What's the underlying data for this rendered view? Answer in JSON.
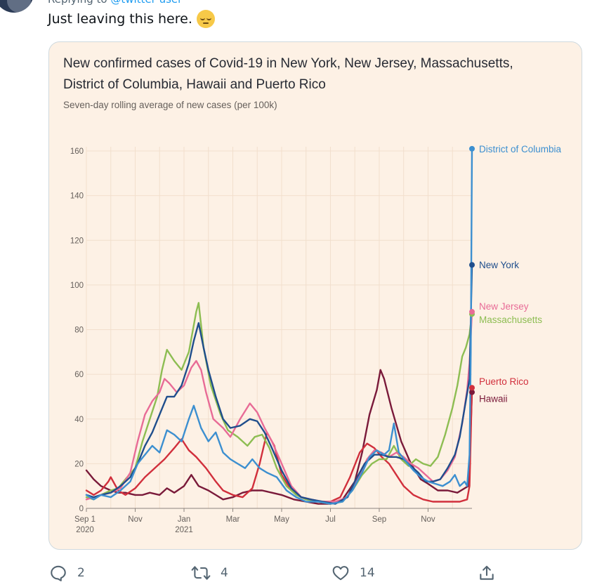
{
  "tweet": {
    "replying_prefix": "Replying to",
    "replying_handle": "@twitter user",
    "text": "Just leaving this here."
  },
  "chart_data": {
    "type": "line",
    "title": "New confirmed cases of Covid-19 in New York, New Jersey, Massachusetts, District of Columbia, Hawaii and Puerto Rico",
    "subtitle": "Seven-day rolling average of new cases (per 100k)",
    "xlabel": "",
    "ylabel": "",
    "ylim": [
      0,
      160
    ],
    "yticks": [
      0,
      20,
      40,
      60,
      80,
      100,
      120,
      140,
      160
    ],
    "xticks": [
      {
        "x": 0,
        "label": "Sep 1",
        "sub": "2020"
      },
      {
        "x": 2,
        "label": "Nov",
        "sub": ""
      },
      {
        "x": 4,
        "label": "Jan",
        "sub": "2021"
      },
      {
        "x": 6,
        "label": "Mar",
        "sub": ""
      },
      {
        "x": 8,
        "label": "May",
        "sub": ""
      },
      {
        "x": 10,
        "label": "Jul",
        "sub": ""
      },
      {
        "x": 12,
        "label": "Sep",
        "sub": ""
      },
      {
        "x": 14,
        "label": "Nov",
        "sub": ""
      }
    ],
    "xlim": [
      0,
      15.8
    ],
    "grid": true,
    "legend": "right-end labels",
    "series": [
      {
        "name": "Hawaii",
        "color": "#7a1a3a",
        "label_offset": 9,
        "points": [
          [
            0,
            17
          ],
          [
            0.3,
            13
          ],
          [
            0.6,
            10
          ],
          [
            1.0,
            8
          ],
          [
            1.3,
            7
          ],
          [
            1.6,
            7
          ],
          [
            2.0,
            6
          ],
          [
            2.3,
            6
          ],
          [
            2.6,
            7
          ],
          [
            3.0,
            6
          ],
          [
            3.3,
            9
          ],
          [
            3.6,
            7
          ],
          [
            4.0,
            10
          ],
          [
            4.3,
            15
          ],
          [
            4.6,
            10
          ],
          [
            5.0,
            8
          ],
          [
            5.3,
            6
          ],
          [
            5.6,
            4
          ],
          [
            6.0,
            5
          ],
          [
            6.4,
            7
          ],
          [
            6.8,
            8
          ],
          [
            7.2,
            8
          ],
          [
            7.6,
            7
          ],
          [
            8.0,
            6
          ],
          [
            8.5,
            4
          ],
          [
            9.0,
            3
          ],
          [
            9.5,
            2
          ],
          [
            10.0,
            2
          ],
          [
            10.5,
            4
          ],
          [
            11.0,
            12
          ],
          [
            11.3,
            25
          ],
          [
            11.6,
            42
          ],
          [
            11.9,
            53
          ],
          [
            12.05,
            62
          ],
          [
            12.2,
            58
          ],
          [
            12.5,
            45
          ],
          [
            12.9,
            30
          ],
          [
            13.3,
            20
          ],
          [
            13.7,
            13
          ],
          [
            14.0,
            11
          ],
          [
            14.4,
            8
          ],
          [
            14.8,
            8
          ],
          [
            15.2,
            7
          ],
          [
            15.5,
            9
          ],
          [
            15.65,
            10
          ],
          [
            15.7,
            20
          ],
          [
            15.8,
            52
          ]
        ]
      },
      {
        "name": "Puerto Rico",
        "color": "#d12f3c",
        "label_offset": -9,
        "points": [
          [
            0,
            8
          ],
          [
            0.3,
            6
          ],
          [
            0.6,
            8
          ],
          [
            0.9,
            12
          ],
          [
            1.0,
            14
          ],
          [
            1.3,
            8
          ],
          [
            1.6,
            6
          ],
          [
            2.0,
            9
          ],
          [
            2.4,
            14
          ],
          [
            2.8,
            18
          ],
          [
            3.2,
            22
          ],
          [
            3.6,
            27
          ],
          [
            3.9,
            31
          ],
          [
            4.2,
            26
          ],
          [
            4.5,
            23
          ],
          [
            4.9,
            18
          ],
          [
            5.3,
            12
          ],
          [
            5.6,
            8
          ],
          [
            6.0,
            6
          ],
          [
            6.4,
            5
          ],
          [
            6.8,
            9
          ],
          [
            7.1,
            20
          ],
          [
            7.4,
            34
          ],
          [
            7.7,
            28
          ],
          [
            8.0,
            15
          ],
          [
            8.4,
            8
          ],
          [
            8.8,
            5
          ],
          [
            9.2,
            4
          ],
          [
            9.6,
            3
          ],
          [
            10.0,
            3
          ],
          [
            10.4,
            5
          ],
          [
            10.8,
            14
          ],
          [
            11.2,
            25
          ],
          [
            11.5,
            29
          ],
          [
            11.8,
            27
          ],
          [
            12.1,
            23
          ],
          [
            12.4,
            20
          ],
          [
            12.7,
            15
          ],
          [
            13.0,
            10
          ],
          [
            13.4,
            6
          ],
          [
            13.8,
            4
          ],
          [
            14.2,
            3
          ],
          [
            14.6,
            3
          ],
          [
            15.0,
            3
          ],
          [
            15.3,
            3
          ],
          [
            15.6,
            4
          ],
          [
            15.7,
            10
          ],
          [
            15.8,
            54
          ]
        ]
      },
      {
        "name": "Massachusetts",
        "color": "#8dbd52",
        "label_offset": 8,
        "points": [
          [
            0,
            5
          ],
          [
            0.3,
            4
          ],
          [
            0.6,
            6
          ],
          [
            1.0,
            8
          ],
          [
            1.3,
            9
          ],
          [
            1.6,
            13
          ],
          [
            2.0,
            18
          ],
          [
            2.3,
            30
          ],
          [
            2.6,
            40
          ],
          [
            2.9,
            50
          ],
          [
            3.1,
            62
          ],
          [
            3.3,
            71
          ],
          [
            3.6,
            66
          ],
          [
            3.9,
            62
          ],
          [
            4.2,
            70
          ],
          [
            4.5,
            88
          ],
          [
            4.6,
            92
          ],
          [
            4.8,
            72
          ],
          [
            5.1,
            55
          ],
          [
            5.5,
            42
          ],
          [
            5.8,
            35
          ],
          [
            6.2,
            32
          ],
          [
            6.6,
            28
          ],
          [
            6.9,
            32
          ],
          [
            7.2,
            33
          ],
          [
            7.5,
            27
          ],
          [
            7.8,
            18
          ],
          [
            8.2,
            10
          ],
          [
            8.6,
            6
          ],
          [
            9.0,
            4
          ],
          [
            9.5,
            3
          ],
          [
            10.0,
            2
          ],
          [
            10.5,
            3
          ],
          [
            10.9,
            8
          ],
          [
            11.3,
            15
          ],
          [
            11.7,
            20
          ],
          [
            12.0,
            22
          ],
          [
            12.3,
            22
          ],
          [
            12.6,
            28
          ],
          [
            12.9,
            22
          ],
          [
            13.2,
            19
          ],
          [
            13.5,
            22
          ],
          [
            13.8,
            20
          ],
          [
            14.1,
            19
          ],
          [
            14.4,
            23
          ],
          [
            14.7,
            33
          ],
          [
            15.0,
            45
          ],
          [
            15.2,
            55
          ],
          [
            15.4,
            68
          ],
          [
            15.55,
            72
          ],
          [
            15.7,
            78
          ],
          [
            15.8,
            87
          ]
        ]
      },
      {
        "name": "New Jersey",
        "color": "#e86b96",
        "label_offset": -8,
        "points": [
          [
            0,
            4
          ],
          [
            0.3,
            5
          ],
          [
            0.6,
            6
          ],
          [
            1.0,
            7
          ],
          [
            1.4,
            9
          ],
          [
            1.8,
            16
          ],
          [
            2.1,
            30
          ],
          [
            2.4,
            42
          ],
          [
            2.7,
            48
          ],
          [
            3.0,
            52
          ],
          [
            3.2,
            58
          ],
          [
            3.4,
            56
          ],
          [
            3.7,
            52
          ],
          [
            4.0,
            55
          ],
          [
            4.3,
            63
          ],
          [
            4.5,
            66
          ],
          [
            4.7,
            62
          ],
          [
            4.9,
            52
          ],
          [
            5.2,
            40
          ],
          [
            5.6,
            36
          ],
          [
            5.9,
            32
          ],
          [
            6.3,
            40
          ],
          [
            6.7,
            47
          ],
          [
            7.0,
            43
          ],
          [
            7.3,
            36
          ],
          [
            7.6,
            30
          ],
          [
            8.0,
            20
          ],
          [
            8.4,
            10
          ],
          [
            8.8,
            5
          ],
          [
            9.2,
            4
          ],
          [
            9.7,
            3
          ],
          [
            10.2,
            3
          ],
          [
            10.7,
            5
          ],
          [
            11.1,
            13
          ],
          [
            11.5,
            22
          ],
          [
            11.8,
            26
          ],
          [
            12.1,
            25
          ],
          [
            12.4,
            23
          ],
          [
            12.7,
            25
          ],
          [
            13.0,
            23
          ],
          [
            13.3,
            20
          ],
          [
            13.6,
            18
          ],
          [
            13.9,
            15
          ],
          [
            14.2,
            12
          ],
          [
            14.5,
            13
          ],
          [
            14.8,
            17
          ],
          [
            15.1,
            23
          ],
          [
            15.4,
            38
          ],
          [
            15.6,
            53
          ],
          [
            15.7,
            65
          ],
          [
            15.8,
            88
          ]
        ]
      },
      {
        "name": "New York",
        "color": "#1f4e8c",
        "label_offset": 0,
        "points": [
          [
            0,
            6
          ],
          [
            0.3,
            5
          ],
          [
            0.6,
            6
          ],
          [
            1.0,
            7
          ],
          [
            1.4,
            10
          ],
          [
            1.8,
            14
          ],
          [
            2.1,
            20
          ],
          [
            2.4,
            28
          ],
          [
            2.7,
            34
          ],
          [
            3.0,
            42
          ],
          [
            3.3,
            50
          ],
          [
            3.6,
            50
          ],
          [
            3.9,
            55
          ],
          [
            4.2,
            65
          ],
          [
            4.4,
            75
          ],
          [
            4.6,
            83
          ],
          [
            4.8,
            72
          ],
          [
            5.0,
            62
          ],
          [
            5.3,
            50
          ],
          [
            5.6,
            40
          ],
          [
            5.9,
            36
          ],
          [
            6.3,
            37
          ],
          [
            6.7,
            40
          ],
          [
            7.0,
            39
          ],
          [
            7.3,
            34
          ],
          [
            7.6,
            27
          ],
          [
            8.0,
            17
          ],
          [
            8.4,
            9
          ],
          [
            8.8,
            5
          ],
          [
            9.2,
            4
          ],
          [
            9.7,
            3
          ],
          [
            10.2,
            2
          ],
          [
            10.7,
            5
          ],
          [
            11.0,
            12
          ],
          [
            11.4,
            20
          ],
          [
            11.8,
            24
          ],
          [
            12.1,
            24
          ],
          [
            12.4,
            23
          ],
          [
            12.7,
            23
          ],
          [
            13.0,
            22
          ],
          [
            13.3,
            19
          ],
          [
            13.6,
            16
          ],
          [
            13.9,
            12
          ],
          [
            14.2,
            12
          ],
          [
            14.5,
            13
          ],
          [
            14.8,
            18
          ],
          [
            15.1,
            24
          ],
          [
            15.3,
            32
          ],
          [
            15.5,
            45
          ],
          [
            15.7,
            58
          ],
          [
            15.8,
            109
          ]
        ]
      },
      {
        "name": "District of Columbia",
        "color": "#3c8fd0",
        "label_offset": 0,
        "points": [
          [
            0,
            6
          ],
          [
            0.3,
            4
          ],
          [
            0.6,
            6
          ],
          [
            1.0,
            5
          ],
          [
            1.4,
            8
          ],
          [
            1.8,
            12
          ],
          [
            2.1,
            20
          ],
          [
            2.4,
            24
          ],
          [
            2.7,
            28
          ],
          [
            3.0,
            25
          ],
          [
            3.3,
            35
          ],
          [
            3.6,
            33
          ],
          [
            3.9,
            30
          ],
          [
            4.2,
            40
          ],
          [
            4.4,
            46
          ],
          [
            4.7,
            36
          ],
          [
            5.0,
            30
          ],
          [
            5.3,
            34
          ],
          [
            5.6,
            25
          ],
          [
            5.9,
            22
          ],
          [
            6.2,
            20
          ],
          [
            6.5,
            18
          ],
          [
            6.8,
            22
          ],
          [
            7.1,
            18
          ],
          [
            7.4,
            16
          ],
          [
            7.8,
            14
          ],
          [
            8.2,
            8
          ],
          [
            8.6,
            5
          ],
          [
            9.0,
            3
          ],
          [
            9.5,
            3
          ],
          [
            10.0,
            2
          ],
          [
            10.5,
            3
          ],
          [
            10.9,
            8
          ],
          [
            11.3,
            16
          ],
          [
            11.6,
            23
          ],
          [
            11.9,
            26
          ],
          [
            12.2,
            24
          ],
          [
            12.4,
            26
          ],
          [
            12.6,
            38
          ],
          [
            12.8,
            25
          ],
          [
            13.1,
            21
          ],
          [
            13.4,
            17
          ],
          [
            13.7,
            14
          ],
          [
            14.0,
            12
          ],
          [
            14.3,
            11
          ],
          [
            14.6,
            10
          ],
          [
            14.9,
            12
          ],
          [
            15.1,
            15
          ],
          [
            15.3,
            10
          ],
          [
            15.5,
            12
          ],
          [
            15.6,
            10
          ],
          [
            15.7,
            24
          ],
          [
            15.75,
            70
          ],
          [
            15.8,
            161
          ]
        ]
      }
    ]
  },
  "actions": {
    "reply_count": "2",
    "retweet_count": "4",
    "like_count": "14"
  },
  "colors": {
    "card_bg": "#fdf1e5",
    "grid": "#f2dfcd",
    "axis": "#8c847e",
    "icon": "#536471"
  }
}
